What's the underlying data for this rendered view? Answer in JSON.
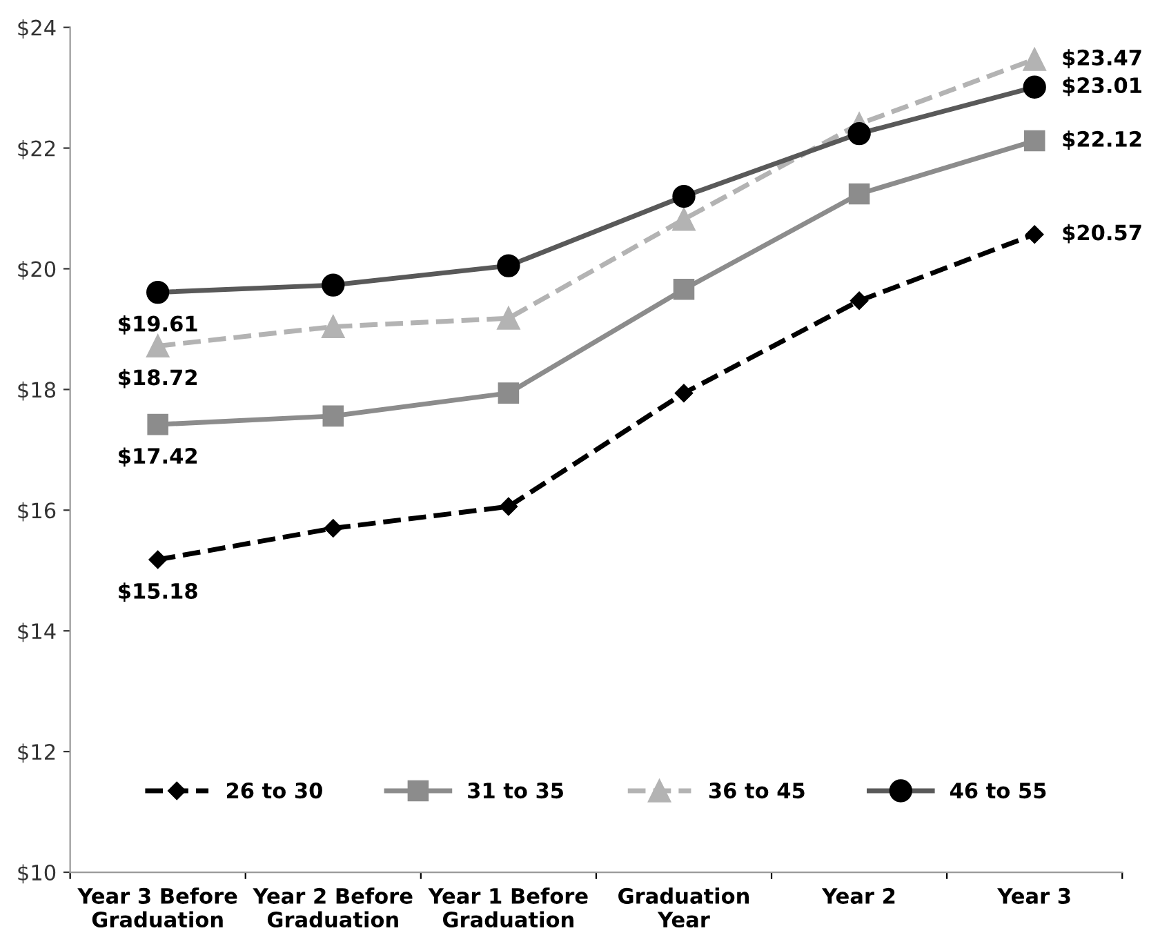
{
  "chart_data": {
    "type": "line",
    "categories": [
      "Year 3 Before\nGraduation",
      "Year 2 Before\nGraduation",
      "Year 1 Before\nGraduation",
      "Graduation\nYear",
      "Year 2",
      "Year 3"
    ],
    "series": [
      {
        "name": "26 to 30",
        "color": "#000000",
        "marker": "diamond",
        "line_style": "dashed",
        "values": [
          15.18,
          15.7,
          16.06,
          17.94,
          19.47,
          20.57
        ],
        "value_labels": [
          "$15.18",
          null,
          null,
          null,
          null,
          "$20.57"
        ]
      },
      {
        "name": "31 to 35",
        "color": "#8c8c8c",
        "marker": "square",
        "line_style": "solid",
        "values": [
          17.42,
          17.56,
          17.94,
          19.66,
          21.24,
          22.12
        ],
        "value_labels": [
          "$17.42",
          null,
          null,
          null,
          null,
          "$22.12"
        ]
      },
      {
        "name": "36 to 45",
        "color": "#b3b3b3",
        "marker": "triangle",
        "line_style": "dashed",
        "values": [
          18.72,
          19.04,
          19.18,
          20.82,
          22.4,
          23.47
        ],
        "value_labels": [
          "$18.72",
          null,
          null,
          null,
          null,
          "$23.47"
        ]
      },
      {
        "name": "46 to 55",
        "color": "#595959",
        "marker": "circle",
        "line_style": "solid",
        "values": [
          19.61,
          19.73,
          20.05,
          21.2,
          22.24,
          23.01
        ],
        "value_labels": [
          "$19.61",
          null,
          null,
          null,
          null,
          "$23.01"
        ]
      }
    ],
    "ylim": [
      10,
      24
    ],
    "yticks": [
      {
        "value": 10,
        "label": "$10"
      },
      {
        "value": 12,
        "label": "$12"
      },
      {
        "value": 14,
        "label": "$14"
      },
      {
        "value": 16,
        "label": "$16"
      },
      {
        "value": 18,
        "label": "$18"
      },
      {
        "value": 20,
        "label": "$20"
      },
      {
        "value": 22,
        "label": "$22"
      },
      {
        "value": 24,
        "label": "$24"
      }
    ],
    "grid": false,
    "legend": "bottom"
  }
}
